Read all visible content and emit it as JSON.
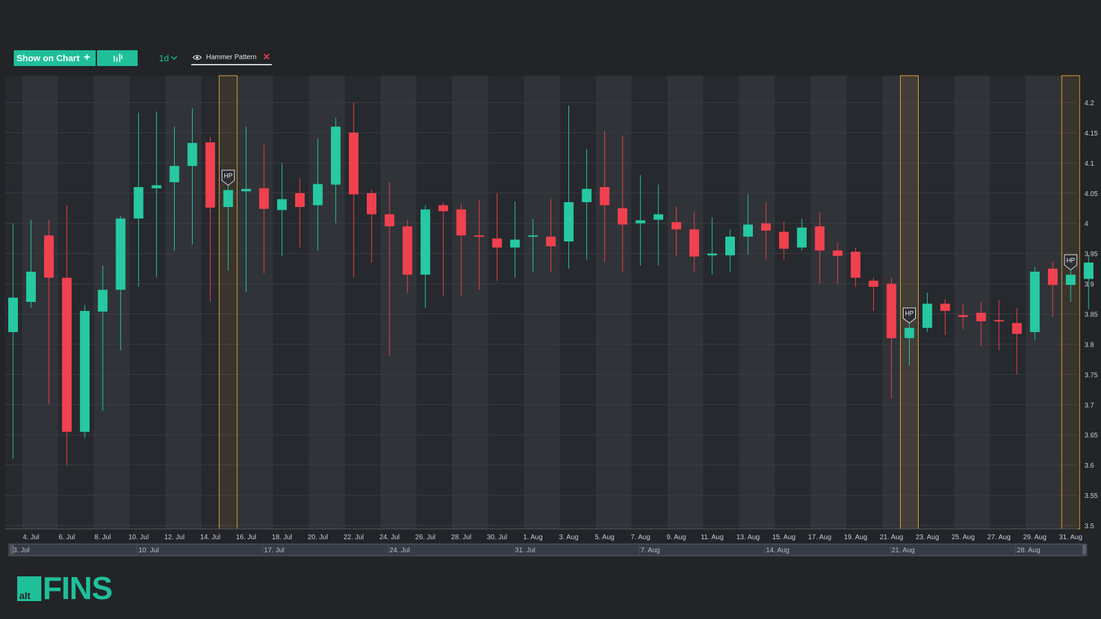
{
  "toolbar": {
    "show_on_chart_label": "Show on Chart",
    "interval_label": "1d",
    "indicator_label": "Hammer Pattern"
  },
  "brand": {
    "logo_small": "alt",
    "logo_word": "FINS"
  },
  "colors": {
    "background": "#222427",
    "up": "#26c9a2",
    "down": "#f0414f",
    "accent": "#1fbf9a",
    "highlight": "#e0a13a"
  },
  "chart_data": {
    "type": "candlestick",
    "ylim": [
      3.5,
      4.25
    ],
    "y_ticks": [
      3.5,
      3.55,
      3.6,
      3.65,
      3.7,
      3.75,
      3.8,
      3.85,
      3.9,
      3.95,
      4,
      4.05,
      4.1,
      4.15,
      4.2
    ],
    "x_tick_labels": [
      "4. Jul",
      "6. Jul",
      "8. Jul",
      "10. Jul",
      "12. Jul",
      "14. Jul",
      "16. Jul",
      "18. Jul",
      "20. Jul",
      "22. Jul",
      "24. Jul",
      "26. Jul",
      "28. Jul",
      "30. Jul",
      "1. Aug",
      "3. Aug",
      "5. Aug",
      "7. Aug",
      "9. Aug",
      "11. Aug",
      "13. Aug",
      "15. Aug",
      "17. Aug",
      "19. Aug",
      "21. Aug",
      "23. Aug",
      "25. Aug",
      "27. Aug",
      "29. Aug",
      "31. Aug"
    ],
    "navigator_labels": [
      "3. Jul",
      "10. Jul",
      "17. Jul",
      "24. Jul",
      "31. Jul",
      "7. Aug",
      "14. Aug",
      "21. Aug",
      "28. Aug"
    ],
    "candles": [
      {
        "date": "3. Jul",
        "o": 3.82,
        "h": 4.0,
        "l": 3.61,
        "c": 3.877
      },
      {
        "date": "4. Jul",
        "o": 3.87,
        "h": 4.006,
        "l": 3.86,
        "c": 3.92
      },
      {
        "date": "5. Jul",
        "o": 3.98,
        "h": 4.006,
        "l": 3.7,
        "c": 3.91
      },
      {
        "date": "6. Jul",
        "o": 3.91,
        "h": 4.03,
        "l": 3.6,
        "c": 3.655
      },
      {
        "date": "7. Jul",
        "o": 3.655,
        "h": 3.865,
        "l": 3.645,
        "c": 3.855
      },
      {
        "date": "8. Jul",
        "o": 3.854,
        "h": 3.93,
        "l": 3.69,
        "c": 3.89
      },
      {
        "date": "9. Jul",
        "o": 3.89,
        "h": 4.012,
        "l": 3.79,
        "c": 4.008
      },
      {
        "date": "10. Jul",
        "o": 4.008,
        "h": 4.183,
        "l": 3.895,
        "c": 4.06
      },
      {
        "date": "11. Jul",
        "o": 4.058,
        "h": 4.185,
        "l": 3.91,
        "c": 4.063
      },
      {
        "date": "12. Jul",
        "o": 4.068,
        "h": 4.16,
        "l": 3.955,
        "c": 4.095
      },
      {
        "date": "13. Jul",
        "o": 4.095,
        "h": 4.19,
        "l": 3.965,
        "c": 4.133
      },
      {
        "date": "14. Jul",
        "o": 4.134,
        "h": 4.143,
        "l": 3.87,
        "c": 4.026
      },
      {
        "date": "15. Jul",
        "o": 4.027,
        "h": 4.07,
        "l": 3.922,
        "c": 4.055
      },
      {
        "date": "16. Jul",
        "o": 4.053,
        "h": 4.16,
        "l": 3.886,
        "c": 4.057
      },
      {
        "date": "17. Jul",
        "o": 4.058,
        "h": 4.13,
        "l": 3.917,
        "c": 4.024
      },
      {
        "date": "18. Jul",
        "o": 4.022,
        "h": 4.1,
        "l": 3.945,
        "c": 4.04
      },
      {
        "date": "19. Jul",
        "o": 4.05,
        "h": 4.075,
        "l": 3.96,
        "c": 4.027
      },
      {
        "date": "20. Jul",
        "o": 4.03,
        "h": 4.14,
        "l": 3.955,
        "c": 4.065
      },
      {
        "date": "21. Jul",
        "o": 4.064,
        "h": 4.175,
        "l": 4.0,
        "c": 4.16
      },
      {
        "date": "22. Jul",
        "o": 4.15,
        "h": 4.2,
        "l": 3.91,
        "c": 4.048
      },
      {
        "date": "23. Jul",
        "o": 4.05,
        "h": 4.055,
        "l": 3.935,
        "c": 4.015
      },
      {
        "date": "24. Jul",
        "o": 4.015,
        "h": 4.068,
        "l": 3.78,
        "c": 3.995
      },
      {
        "date": "25. Jul",
        "o": 3.995,
        "h": 4.006,
        "l": 3.885,
        "c": 3.915
      },
      {
        "date": "26. Jul",
        "o": 3.915,
        "h": 4.03,
        "l": 3.86,
        "c": 4.023
      },
      {
        "date": "27. Jul",
        "o": 4.03,
        "h": 4.035,
        "l": 3.88,
        "c": 4.02
      },
      {
        "date": "28. Jul",
        "o": 4.023,
        "h": 4.033,
        "l": 3.88,
        "c": 3.98
      },
      {
        "date": "29. Jul",
        "o": 3.98,
        "h": 4.038,
        "l": 3.89,
        "c": 3.978
      },
      {
        "date": "30. Jul",
        "o": 3.975,
        "h": 4.05,
        "l": 3.905,
        "c": 3.96
      },
      {
        "date": "31. Jul",
        "o": 3.96,
        "h": 4.036,
        "l": 3.91,
        "c": 3.973
      },
      {
        "date": "1. Aug",
        "o": 3.978,
        "h": 4.007,
        "l": 3.92,
        "c": 3.98
      },
      {
        "date": "2. Aug",
        "o": 3.978,
        "h": 4.04,
        "l": 3.92,
        "c": 3.962
      },
      {
        "date": "3. Aug",
        "o": 3.97,
        "h": 4.195,
        "l": 3.925,
        "c": 4.035
      },
      {
        "date": "4. Aug",
        "o": 4.035,
        "h": 4.123,
        "l": 3.94,
        "c": 4.057
      },
      {
        "date": "5. Aug",
        "o": 4.06,
        "h": 4.153,
        "l": 3.936,
        "c": 4.03
      },
      {
        "date": "6. Aug",
        "o": 4.025,
        "h": 4.145,
        "l": 3.92,
        "c": 3.998
      },
      {
        "date": "7. Aug",
        "o": 4.0,
        "h": 4.08,
        "l": 3.93,
        "c": 4.005
      },
      {
        "date": "8. Aug",
        "o": 4.006,
        "h": 4.064,
        "l": 3.93,
        "c": 4.015
      },
      {
        "date": "9. Aug",
        "o": 4.002,
        "h": 4.028,
        "l": 3.945,
        "c": 3.99
      },
      {
        "date": "10. Aug",
        "o": 3.99,
        "h": 4.02,
        "l": 3.92,
        "c": 3.945
      },
      {
        "date": "11. Aug",
        "o": 3.947,
        "h": 4.01,
        "l": 3.915,
        "c": 3.95
      },
      {
        "date": "12. Aug",
        "o": 3.947,
        "h": 3.99,
        "l": 3.92,
        "c": 3.978
      },
      {
        "date": "13. Aug",
        "o": 3.978,
        "h": 4.048,
        "l": 3.948,
        "c": 3.998
      },
      {
        "date": "14. Aug",
        "o": 4.0,
        "h": 4.035,
        "l": 3.94,
        "c": 3.988
      },
      {
        "date": "15. Aug",
        "o": 3.986,
        "h": 4.003,
        "l": 3.94,
        "c": 3.958
      },
      {
        "date": "16. Aug",
        "o": 3.96,
        "h": 4.008,
        "l": 3.955,
        "c": 3.993
      },
      {
        "date": "17. Aug",
        "o": 3.995,
        "h": 4.018,
        "l": 3.9,
        "c": 3.955
      },
      {
        "date": "18. Aug",
        "o": 3.955,
        "h": 3.968,
        "l": 3.9,
        "c": 3.946
      },
      {
        "date": "19. Aug",
        "o": 3.953,
        "h": 3.96,
        "l": 3.895,
        "c": 3.91
      },
      {
        "date": "20. Aug",
        "o": 3.905,
        "h": 3.91,
        "l": 3.855,
        "c": 3.895
      },
      {
        "date": "21. Aug",
        "o": 3.9,
        "h": 3.91,
        "l": 3.71,
        "c": 3.81
      },
      {
        "date": "22. Aug",
        "o": 3.81,
        "h": 3.845,
        "l": 3.765,
        "c": 3.827
      },
      {
        "date": "23. Aug",
        "o": 3.827,
        "h": 3.885,
        "l": 3.82,
        "c": 3.867
      },
      {
        "date": "24. Aug",
        "o": 3.867,
        "h": 3.875,
        "l": 3.815,
        "c": 3.855
      },
      {
        "date": "25. Aug",
        "o": 3.848,
        "h": 3.867,
        "l": 3.825,
        "c": 3.845
      },
      {
        "date": "26. Aug",
        "o": 3.852,
        "h": 3.87,
        "l": 3.797,
        "c": 3.838
      },
      {
        "date": "27. Aug",
        "o": 3.84,
        "h": 3.873,
        "l": 3.79,
        "c": 3.838
      },
      {
        "date": "28. Aug",
        "o": 3.835,
        "h": 3.86,
        "l": 3.75,
        "c": 3.817
      },
      {
        "date": "29. Aug",
        "o": 3.82,
        "h": 3.928,
        "l": 3.807,
        "c": 3.92
      },
      {
        "date": "30. Aug",
        "o": 3.925,
        "h": 3.937,
        "l": 3.845,
        "c": 3.898
      },
      {
        "date": "31. Aug",
        "o": 3.898,
        "h": 3.937,
        "l": 3.87,
        "c": 3.915
      },
      {
        "date": "1. Sep",
        "o": 3.908,
        "h": 3.948,
        "l": 3.858,
        "c": 3.935
      }
    ],
    "hammer_pattern": {
      "marker_label": "HP",
      "dates": [
        "15. Jul",
        "22. Aug",
        "31. Aug"
      ]
    },
    "grid": true
  }
}
